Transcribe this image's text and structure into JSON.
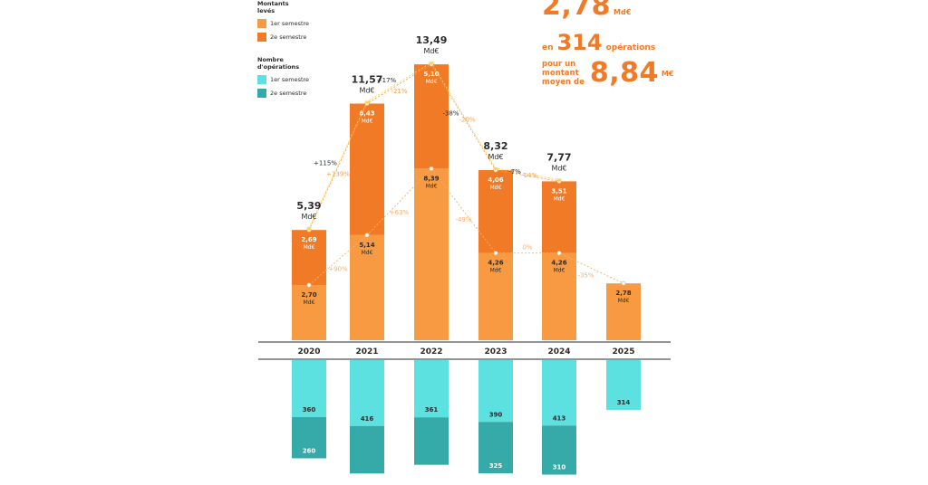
{
  "legend": {
    "amounts_title": [
      "Montants",
      "levés"
    ],
    "amounts_s1": "1er semestre",
    "amounts_s2": "2e semestre",
    "ops_title": [
      "Nombre",
      "d'opérations"
    ],
    "ops_s1": "1er semestre",
    "ops_s2": "2e semestre"
  },
  "headline": {
    "total_value": "2,78",
    "total_unit": "Md€",
    "ops_prefix": "en",
    "ops_value": "314",
    "ops_suffix": "opérations",
    "avg_prefix": [
      "pour un",
      "montant",
      "moyen de"
    ],
    "avg_value": "8,84",
    "avg_unit": "M€"
  },
  "colors": {
    "amount_s1": "#f79a42",
    "amount_s2": "#f07a26",
    "ops_s1": "#5ce0e0",
    "ops_s2": "#35aaa8",
    "total_line": "#ffd45a",
    "s2_line": "#f0a050",
    "s1_line": "#f3b06a",
    "axis": "#555555",
    "label_dark": "#2b2b2b"
  },
  "chart_data": {
    "type": "bar",
    "categories": [
      "2020",
      "2021",
      "2022",
      "2023",
      "2024",
      "2025"
    ],
    "amounts": {
      "s1": [
        2.7,
        5.14,
        8.39,
        4.26,
        4.26,
        2.78
      ],
      "s2": [
        2.69,
        6.43,
        5.1,
        4.06,
        3.51,
        null
      ],
      "s1_labels": [
        "2,70",
        "5,14",
        "8,39",
        "4,26",
        "4,26",
        "2,78"
      ],
      "s2_labels": [
        "2,69",
        "6,43",
        "5,10",
        "4,06",
        "3,51",
        ""
      ],
      "unit": "Md€",
      "totals": [
        5.39,
        11.57,
        13.49,
        8.32,
        7.77
      ],
      "total_labels": [
        "5,39",
        "11,57",
        "13,49",
        "8,32",
        "7,77"
      ],
      "total_changes": [
        "+115%",
        "+17%",
        "-38%",
        "-7%"
      ],
      "s2_changes": [
        "+139%",
        "-21%",
        "-20%",
        "-14%"
      ],
      "s1_changes": [
        "+90%",
        "+63%",
        "-49%",
        "0%",
        "-35%"
      ]
    },
    "operations": {
      "s1": [
        360,
        416,
        361,
        390,
        413,
        314
      ],
      "s2": [
        260,
        null,
        null,
        325,
        310,
        null
      ],
      "s1_labels": [
        "360",
        "416",
        "361",
        "390",
        "413",
        "314"
      ],
      "s2_labels": [
        "260",
        "",
        "",
        "325",
        "310",
        ""
      ]
    },
    "ylim": [
      0,
      14
    ]
  }
}
